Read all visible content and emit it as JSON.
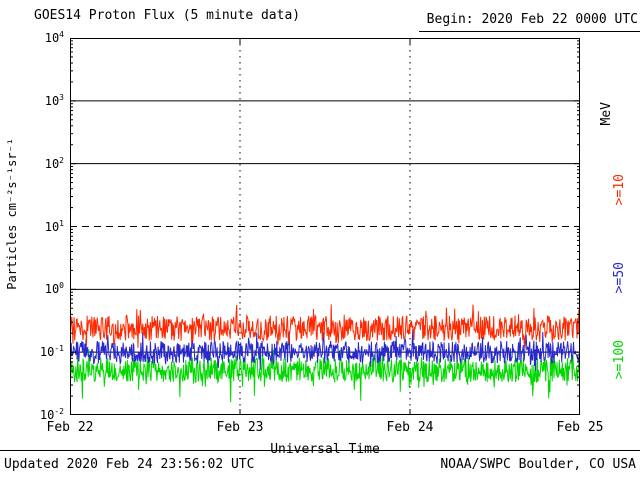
{
  "header": {
    "title": "GOES14 Proton Flux (5 minute data)",
    "begin_label": "Begin: 2020 Feb 22 0000 UTC"
  },
  "footer": {
    "updated": "Updated 2020 Feb 24 23:56:02 UTC",
    "source": "NOAA/SWPC Boulder, CO USA"
  },
  "chart_data": {
    "type": "line",
    "title": "GOES14 Proton Flux (5 minute data)",
    "begin": "2020 Feb 22 0000 UTC",
    "updated": "2020 Feb 24 23:56:02 UTC",
    "xlabel": "Universal Time",
    "ylabel": "Particles cm⁻²s⁻¹sr⁻¹",
    "right_axis_unit": "MeV",
    "x_tick_labels": [
      "Feb 22",
      "Feb 23",
      "Feb 24",
      "Feb 25"
    ],
    "x_range_days": 3,
    "points_per_day": 288,
    "y_scale": "log10",
    "ylim_log10": [
      -2,
      4
    ],
    "y_tick_exponents": [
      4,
      3,
      2,
      1,
      0,
      -1,
      -2
    ],
    "grid_on": true,
    "grid": {
      "solid_horizontal_decades": [
        3,
        2,
        0,
        -1
      ],
      "dashed_horizontal_decades": [
        1
      ],
      "dotted_vertical_days": [
        1,
        2
      ]
    },
    "legend_position": "right",
    "series": [
      {
        "name": ">=10",
        "unit": "MeV",
        "color": "#ff2800",
        "approx_flux_range": [
          0.13,
          0.45
        ],
        "baseline_log10": -0.62,
        "noise_log10": 0.2,
        "spike_log10": 0.3,
        "dip_log10": 0.15
      },
      {
        "name": ">=50",
        "unit": "MeV",
        "color": "#2828cc",
        "approx_flux_range": [
          0.06,
          0.17
        ],
        "baseline_log10": -1.0,
        "noise_log10": 0.18,
        "spike_log10": 0.22,
        "dip_log10": 0.2
      },
      {
        "name": ">=100",
        "unit": "MeV",
        "color": "#00d800",
        "approx_flux_range": [
          0.025,
          0.09
        ],
        "baseline_log10": -1.28,
        "noise_log10": 0.2,
        "spike_log10": 0.18,
        "dip_log10": 0.4
      }
    ]
  }
}
